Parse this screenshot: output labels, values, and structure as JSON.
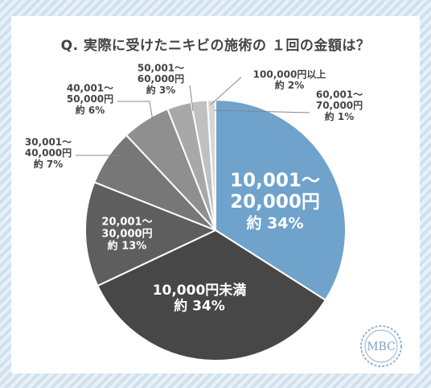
{
  "title": "Q. 実際に受けたニキビの施術の １回の金額は？",
  "logo_text": "MBC",
  "chart_data": {
    "type": "pie",
    "title": "Q. 実際に受けたニキビの施術の １回の金額は？",
    "slices": [
      {
        "label_lines": [
          "10,001～",
          "20,000円"
        ],
        "pct_text": "約 34%",
        "value": 34,
        "color": "#6fa3cc"
      },
      {
        "label_lines": [
          "10,000円未満"
        ],
        "pct_text": "約 34%",
        "value": 34,
        "color": "#474747"
      },
      {
        "label_lines": [
          "20,001～",
          "30,000円"
        ],
        "pct_text": "約 13%",
        "value": 13,
        "color": "#5e5e5e"
      },
      {
        "label_lines": [
          "30,001～",
          "40,000円"
        ],
        "pct_text": "約 7%",
        "value": 7,
        "color": "#777777"
      },
      {
        "label_lines": [
          "40,001～",
          "50,000円"
        ],
        "pct_text": "約 6%",
        "value": 6,
        "color": "#8f8f8f"
      },
      {
        "label_lines": [
          "50,001～",
          "60,000円"
        ],
        "pct_text": "約 3%",
        "value": 3,
        "color": "#a8a8a8"
      },
      {
        "label_lines": [
          "100,000円以上"
        ],
        "pct_text": "約 2%",
        "value": 2,
        "color": "#c0c0c0"
      },
      {
        "label_lines": [
          "60,001～",
          "70,000円"
        ],
        "pct_text": "約 1%",
        "value": 1,
        "color": "#d6d6d6"
      }
    ]
  }
}
